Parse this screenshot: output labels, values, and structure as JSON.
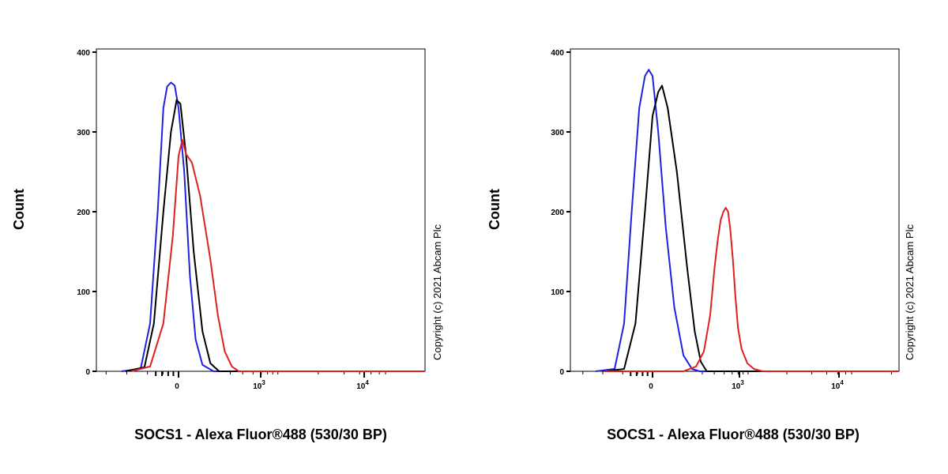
{
  "figure": {
    "copyright": "Copyright (c) 2021 Abcam Plc"
  },
  "chart_data": [
    {
      "type": "line",
      "xlabel": "SOCS1 - Alexa Fluor®488 (530/30 BP)",
      "ylabel": "Count",
      "x_scale": "biexponential",
      "ylim": [
        0,
        400
      ],
      "yticks": [
        "0",
        "100",
        "200",
        "300",
        "400"
      ],
      "xticks": [
        {
          "label": "0",
          "value": 0
        },
        {
          "label": "10",
          "sup": "3",
          "value": 1000
        },
        {
          "label": "10",
          "sup": "4",
          "value": 10000
        }
      ],
      "grid": false,
      "series": [
        {
          "color": "#2020e0",
          "points": [
            [
              -300,
              0
            ],
            [
              -200,
              3
            ],
            [
              -150,
              60
            ],
            [
              -110,
              200
            ],
            [
              -80,
              330
            ],
            [
              -60,
              357
            ],
            [
              -40,
              362
            ],
            [
              -20,
              358
            ],
            [
              0,
              330
            ],
            [
              30,
              250
            ],
            [
              60,
              120
            ],
            [
              90,
              40
            ],
            [
              120,
              8
            ],
            [
              180,
              0
            ],
            [
              40000,
              0
            ]
          ]
        },
        {
          "color": "#000000",
          "points": [
            [
              -280,
              0
            ],
            [
              -180,
              5
            ],
            [
              -130,
              60
            ],
            [
              -80,
              200
            ],
            [
              -40,
              300
            ],
            [
              -10,
              340
            ],
            [
              10,
              335
            ],
            [
              40,
              270
            ],
            [
              80,
              150
            ],
            [
              120,
              50
            ],
            [
              160,
              10
            ],
            [
              220,
              0
            ],
            [
              40000,
              0
            ]
          ]
        },
        {
          "color": "#e02020",
          "points": [
            [
              -250,
              0
            ],
            [
              -150,
              6
            ],
            [
              -80,
              60
            ],
            [
              -30,
              170
            ],
            [
              0,
              270
            ],
            [
              20,
              290
            ],
            [
              40,
              272
            ],
            [
              70,
              262
            ],
            [
              110,
              220
            ],
            [
              160,
              140
            ],
            [
              210,
              70
            ],
            [
              270,
              25
            ],
            [
              350,
              6
            ],
            [
              450,
              0
            ],
            [
              40000,
              0
            ]
          ]
        }
      ]
    },
    {
      "type": "line",
      "xlabel": "SOCS1 - Alexa Fluor®488 (530/30 BP)",
      "ylabel": "Count",
      "x_scale": "biexponential",
      "ylim": [
        0,
        400
      ],
      "yticks": [
        "0",
        "100",
        "200",
        "300",
        "400"
      ],
      "xticks": [
        {
          "label": "0",
          "value": 0
        },
        {
          "label": "10",
          "sup": "3",
          "value": 1000
        },
        {
          "label": "10",
          "sup": "4",
          "value": 10000
        }
      ],
      "grid": false,
      "series": [
        {
          "color": "#2020e0",
          "points": [
            [
              -300,
              0
            ],
            [
              -200,
              3
            ],
            [
              -150,
              60
            ],
            [
              -110,
              200
            ],
            [
              -70,
              330
            ],
            [
              -40,
              370
            ],
            [
              -20,
              378
            ],
            [
              0,
              370
            ],
            [
              30,
              300
            ],
            [
              70,
              180
            ],
            [
              110,
              80
            ],
            [
              150,
              20
            ],
            [
              200,
              3
            ],
            [
              260,
              0
            ],
            [
              40000,
              0
            ]
          ]
        },
        {
          "color": "#000000",
          "points": [
            [
              -250,
              0
            ],
            [
              -150,
              3
            ],
            [
              -90,
              60
            ],
            [
              -40,
              200
            ],
            [
              0,
              320
            ],
            [
              30,
              350
            ],
            [
              50,
              358
            ],
            [
              80,
              330
            ],
            [
              120,
              250
            ],
            [
              170,
              130
            ],
            [
              220,
              50
            ],
            [
              270,
              12
            ],
            [
              330,
              0
            ],
            [
              40000,
              0
            ]
          ]
        },
        {
          "color": "#e02020",
          "points": [
            [
              -250,
              0
            ],
            [
              150,
              0
            ],
            [
              230,
              6
            ],
            [
              300,
              25
            ],
            [
              370,
              70
            ],
            [
              430,
              130
            ],
            [
              480,
              165
            ],
            [
              530,
              190
            ],
            [
              580,
              200
            ],
            [
              630,
              205
            ],
            [
              680,
              200
            ],
            [
              730,
              180
            ],
            [
              800,
              140
            ],
            [
              870,
              95
            ],
            [
              950,
              55
            ],
            [
              1050,
              28
            ],
            [
              1200,
              10
            ],
            [
              1400,
              3
            ],
            [
              1700,
              0
            ],
            [
              40000,
              0
            ]
          ]
        }
      ]
    }
  ]
}
